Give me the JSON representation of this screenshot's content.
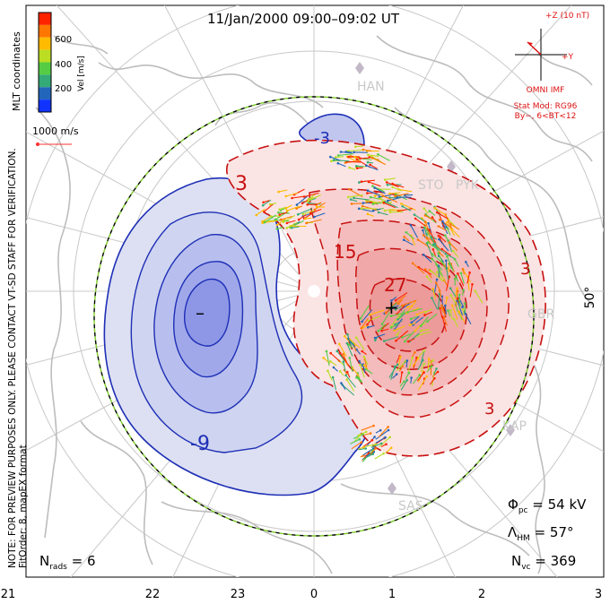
{
  "title": "11/Jan/2000 09:00–09:02 UT",
  "colorbar": {
    "title": "MLT coordinates",
    "axis_label": "Vel [m/s]",
    "ticks": [
      "600",
      "400",
      "200"
    ],
    "colors": [
      "#ff2200",
      "#ff7700",
      "#ffbb00",
      "#bbdd22",
      "#55cc44",
      "#33aa77",
      "#2266bb",
      "#1133ff"
    ]
  },
  "scale_vector": {
    "label": "1000 m/s",
    "color": "#ff3030"
  },
  "side_notes": {
    "preview": "NOTE: FOR PREVIEW PURPOSES ONLY. PLEASE CONTACT VT-SD STAFF FOR VERIFICATION.",
    "fitorder": "FitOrder: 8, mapEX format"
  },
  "imf": {
    "z_label": "+Z (10 nT)",
    "y_label": "+Y",
    "source": "OMNI IMF",
    "model": "Stat Mod: RG96",
    "condition": "By−, 6<BT<12",
    "color": "#dd1111"
  },
  "stations": [
    {
      "code": "HAN"
    },
    {
      "code": "STO"
    },
    {
      "code": "PYK"
    },
    {
      "code": "GBR"
    },
    {
      "code": "KAP"
    },
    {
      "code": "SAS"
    }
  ],
  "latitude_label": "50°",
  "contour_labels": {
    "neg_small": "-3",
    "neg_big": "-9",
    "pos_3a": "3",
    "pos_3b": "3",
    "pos_3c": "3",
    "pos_15": "15",
    "pos_27": "27"
  },
  "extrema": {
    "min_marker": "–",
    "max_marker": "+"
  },
  "stats": {
    "phi_symbol": "Φ",
    "phi_sub": "pc",
    "phi_value": " = 54 kV",
    "lambda_symbol": "Λ",
    "lambda_sub": "HM",
    "lambda_value": " = 57°",
    "nvc_symbol": "N",
    "nvc_sub": "vc",
    "nvc_value": " = 369",
    "nrads_symbol": "N",
    "nrads_sub": "rads",
    "nrads_value": " = 6"
  },
  "mlt_ticks": [
    "21",
    "22",
    "23",
    "0",
    "1",
    "2",
    "3"
  ],
  "colors": {
    "negative_fill_light": "#dde0f2",
    "negative_fill_mid": "#c0c6ee",
    "negative_fill_dark": "#8d97e6",
    "negative_line": "#1e2fb6",
    "positive_fill_light": "#fbe4e4",
    "positive_fill_mid": "#f6c4c4",
    "positive_fill_dark": "#ef9a9a",
    "positive_line": "#c81010",
    "coast": "#bdbdbd",
    "grid": "#c8c8c8"
  }
}
